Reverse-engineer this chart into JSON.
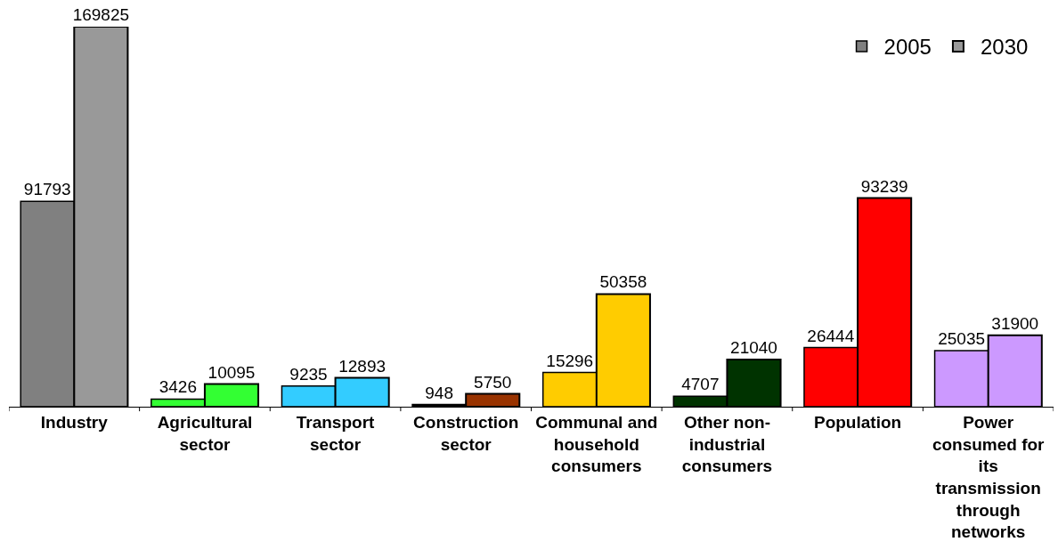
{
  "chart_data": {
    "type": "bar",
    "categories": [
      "Industry",
      "Agricultural sector",
      "Transport sector",
      "Construction sector",
      "Communal and household consumers",
      "Other non-industrial consumers",
      "Population",
      "Power consumed for its transmission through networks"
    ],
    "series": [
      {
        "name": "2005",
        "values": [
          91793,
          3426,
          9235,
          948,
          15296,
          4707,
          26444,
          25035
        ],
        "colors": [
          "#808080",
          "#33ff33",
          "#33ccff",
          "#000000",
          "#ffcc00",
          "#003300",
          "#ff0000",
          "#cc99ff"
        ]
      },
      {
        "name": "2030",
        "values": [
          169825,
          10095,
          12893,
          5750,
          50358,
          21040,
          93239,
          31900
        ],
        "colors": [
          "#999999",
          "#33ff33",
          "#33ccff",
          "#993300",
          "#ffcc00",
          "#003300",
          "#ff0000",
          "#cc99ff"
        ]
      }
    ],
    "data_labels": true,
    "legend": "top right"
  }
}
